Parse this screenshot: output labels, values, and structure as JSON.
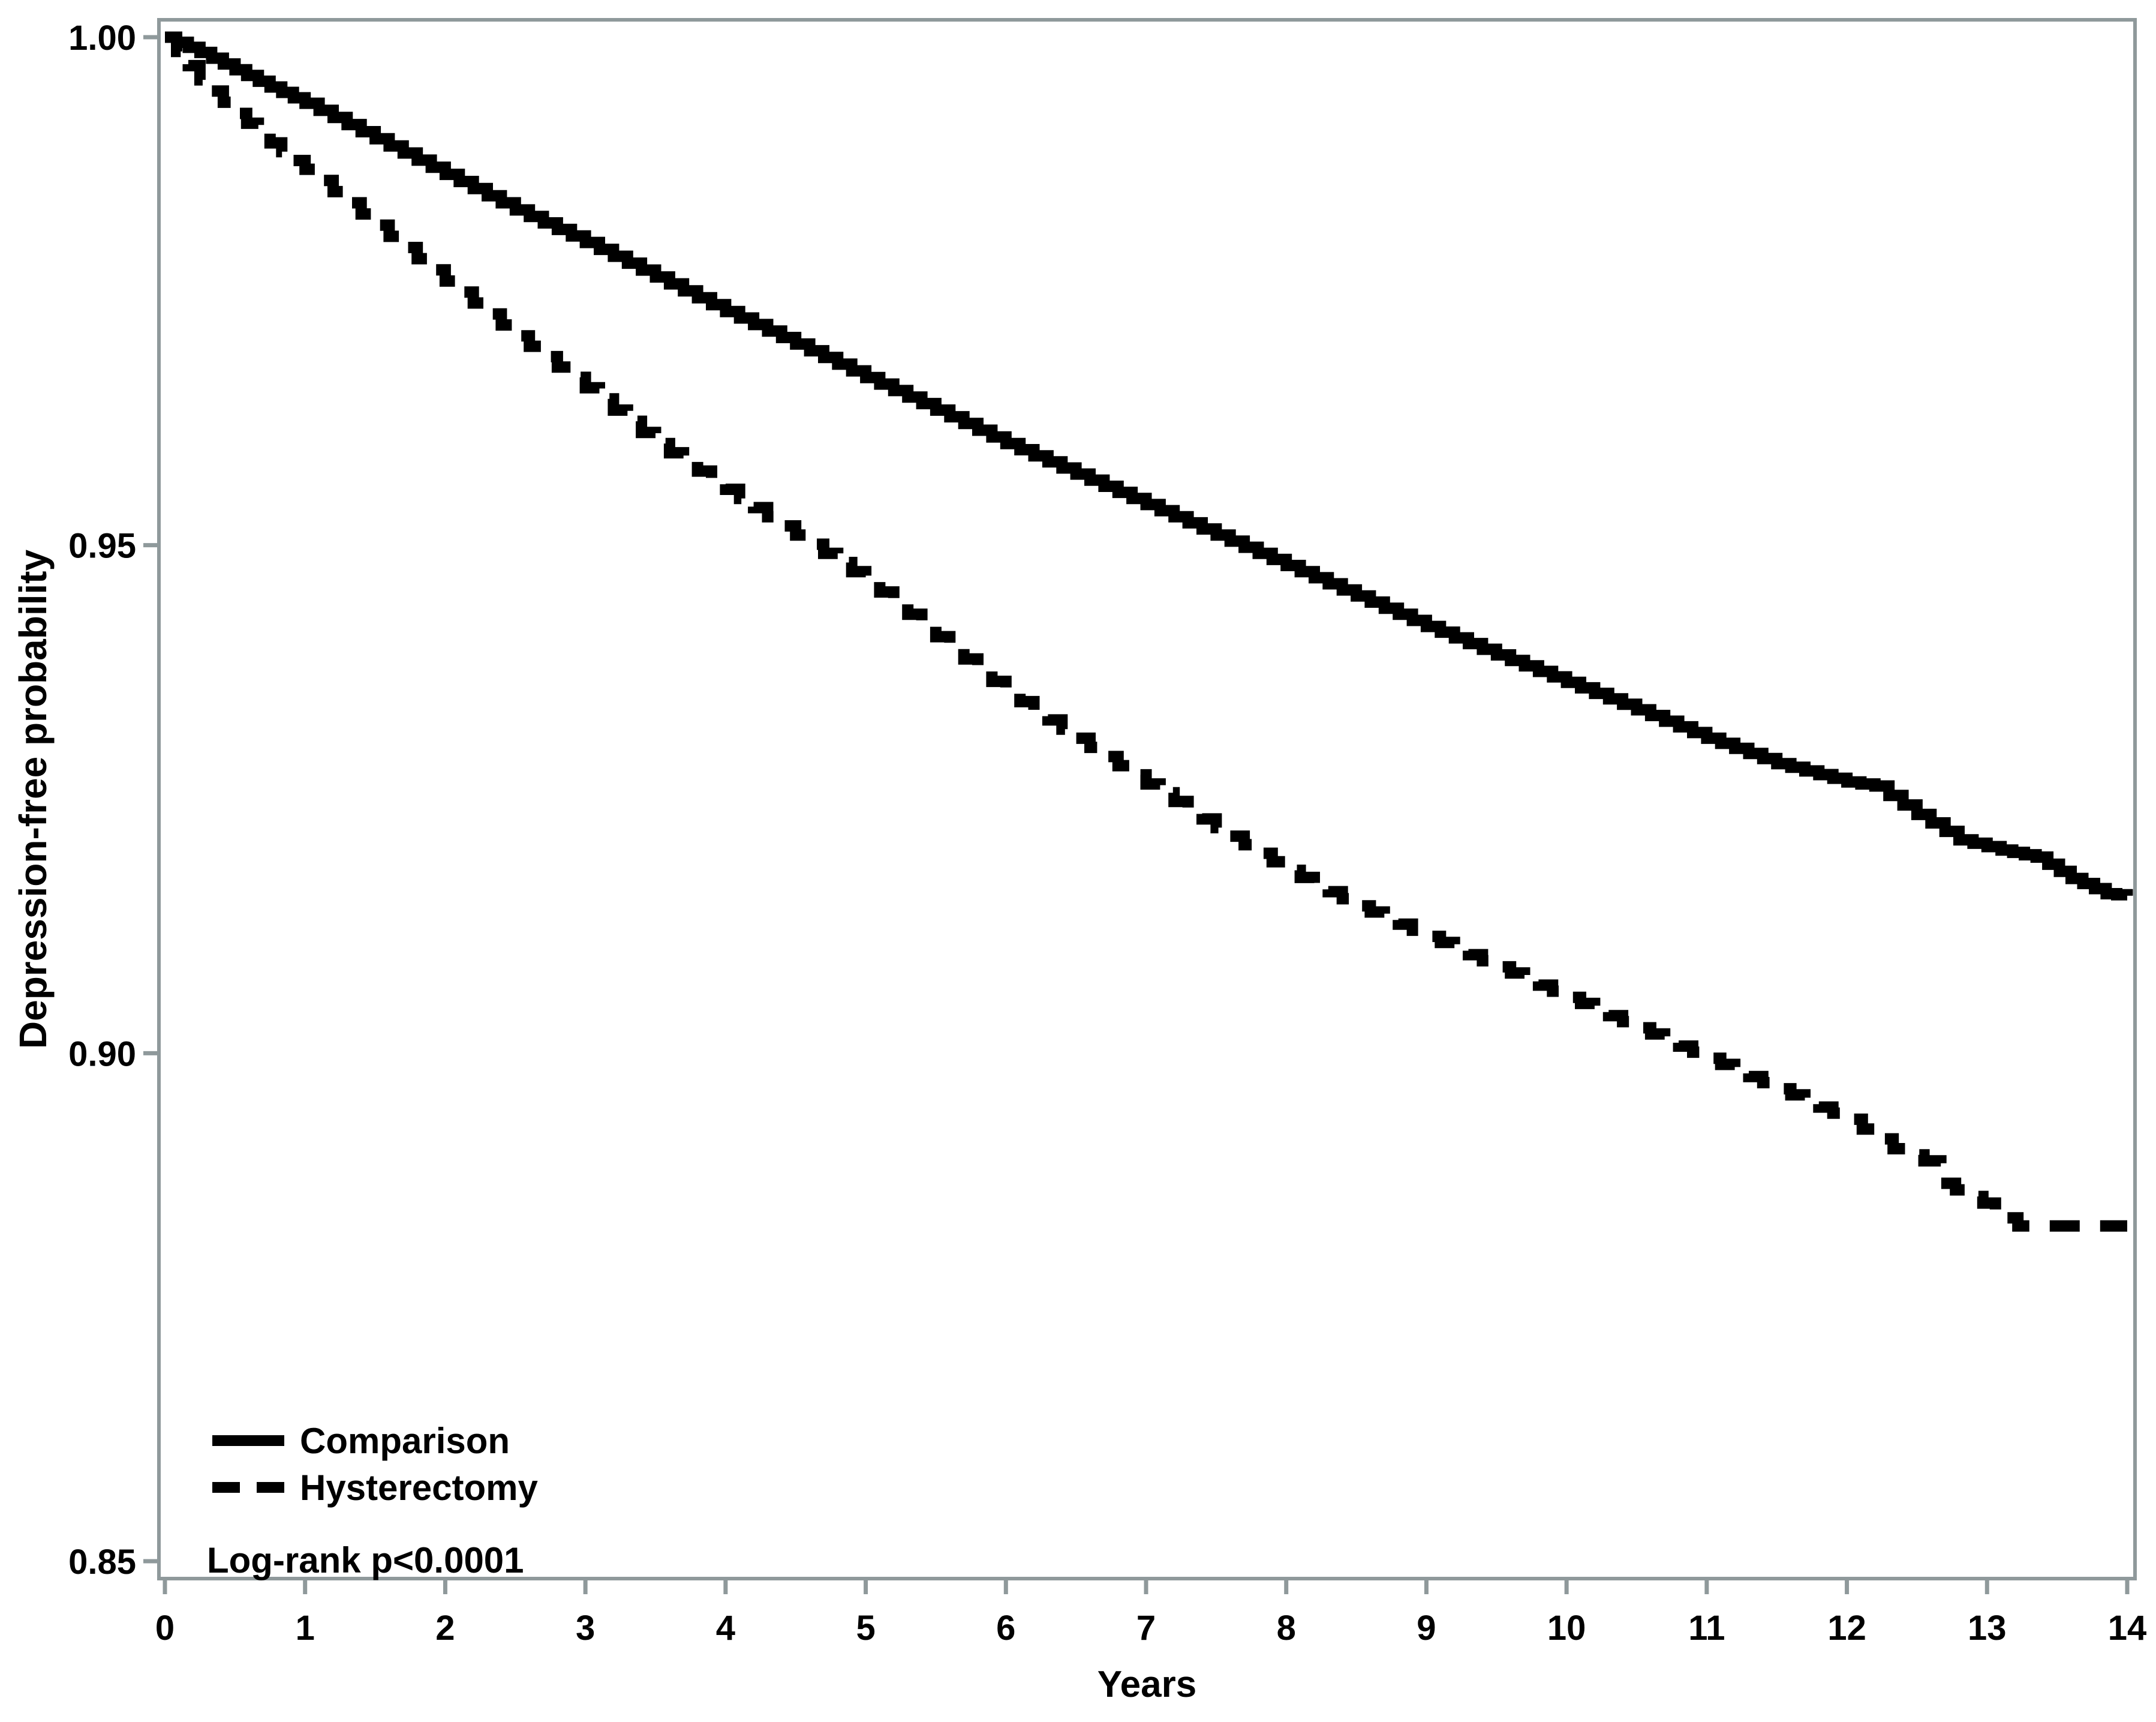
{
  "figure": {
    "y_axis_title": "Depression-free probability",
    "x_axis_title": "Years",
    "annotation": "Log-rank p<0.0001",
    "legend": [
      {
        "label": "Comparison",
        "style": "solid"
      },
      {
        "label": "Hysterectomy",
        "style": "dashed"
      }
    ]
  },
  "chart_data": {
    "type": "line",
    "subtype": "kaplan-meier-survival",
    "title": "",
    "xlabel": "Years",
    "ylabel": "Depression-free probability",
    "xlim": [
      0,
      14
    ],
    "ylim": [
      0.85,
      1.0
    ],
    "grid": false,
    "legend_position": "inside-bottom-left",
    "annotation": "Log-rank p<0.0001",
    "colors": {
      "curves": "#000000",
      "axis": "#8f999b",
      "background": "#ffffff"
    },
    "x_ticks": [
      {
        "value": 0,
        "label": "0"
      },
      {
        "value": 1,
        "label": "1"
      },
      {
        "value": 2,
        "label": "2"
      },
      {
        "value": 3,
        "label": "3"
      },
      {
        "value": 4,
        "label": "4"
      },
      {
        "value": 5,
        "label": "5"
      },
      {
        "value": 6,
        "label": "6"
      },
      {
        "value": 7,
        "label": "7"
      },
      {
        "value": 8,
        "label": "8"
      },
      {
        "value": 9,
        "label": "9"
      },
      {
        "value": 10,
        "label": "10"
      },
      {
        "value": 11,
        "label": "11"
      },
      {
        "value": 12,
        "label": "12"
      },
      {
        "value": 13,
        "label": "13"
      },
      {
        "value": 14,
        "label": "14"
      }
    ],
    "y_ticks": [
      {
        "value": 1.0,
        "label": "1.00"
      },
      {
        "value": 0.95,
        "label": "0.95"
      },
      {
        "value": 0.9,
        "label": "0.90"
      },
      {
        "value": 0.85,
        "label": "0.85"
      }
    ],
    "series": [
      {
        "name": "Comparison",
        "line": "solid",
        "points": [
          [
            0,
            1.0
          ],
          [
            0.25,
            0.9985
          ],
          [
            0.5,
            0.9968
          ],
          [
            0.75,
            0.9951
          ],
          [
            1,
            0.9935
          ],
          [
            1.5,
            0.99
          ],
          [
            2,
            0.9865
          ],
          [
            2.5,
            0.983
          ],
          [
            3,
            0.9798
          ],
          [
            3.5,
            0.9764
          ],
          [
            4,
            0.973
          ],
          [
            4.5,
            0.9698
          ],
          [
            5,
            0.9665
          ],
          [
            5.5,
            0.9633
          ],
          [
            6,
            0.96
          ],
          [
            6.5,
            0.957
          ],
          [
            7,
            0.954
          ],
          [
            7.5,
            0.951
          ],
          [
            8,
            0.948
          ],
          [
            8.5,
            0.945
          ],
          [
            9,
            0.942
          ],
          [
            9.5,
            0.9392
          ],
          [
            10,
            0.9365
          ],
          [
            10.5,
            0.9338
          ],
          [
            11,
            0.931
          ],
          [
            11.5,
            0.9285
          ],
          [
            12,
            0.9267
          ],
          [
            12.2,
            0.9263
          ],
          [
            12.5,
            0.9235
          ],
          [
            12.8,
            0.921
          ],
          [
            13.1,
            0.92
          ],
          [
            13.35,
            0.9193
          ],
          [
            13.6,
            0.9172
          ],
          [
            13.85,
            0.9157
          ],
          [
            14,
            0.9155
          ]
        ]
      },
      {
        "name": "Hysterectomy",
        "line": "dashed",
        "points": [
          [
            0,
            1.0
          ],
          [
            0.25,
            0.9958
          ],
          [
            0.5,
            0.9925
          ],
          [
            0.75,
            0.9896
          ],
          [
            1,
            0.987
          ],
          [
            1.5,
            0.9815
          ],
          [
            2,
            0.976
          ],
          [
            2.5,
            0.9706
          ],
          [
            3,
            0.9655
          ],
          [
            3.5,
            0.96
          ],
          [
            4,
            0.9555
          ],
          [
            4.5,
            0.951
          ],
          [
            5,
            0.9465
          ],
          [
            5.5,
            0.941
          ],
          [
            6,
            0.9355
          ],
          [
            6.5,
            0.931
          ],
          [
            7,
            0.9265
          ],
          [
            7.5,
            0.9222
          ],
          [
            8,
            0.918
          ],
          [
            8.5,
            0.9145
          ],
          [
            9,
            0.9115
          ],
          [
            9.5,
            0.9085
          ],
          [
            10,
            0.9055
          ],
          [
            10.5,
            0.9025
          ],
          [
            11,
            0.8995
          ],
          [
            11.5,
            0.8965
          ],
          [
            12,
            0.8935
          ],
          [
            12.33,
            0.8906
          ],
          [
            12.55,
            0.8894
          ],
          [
            12.67,
            0.8872
          ],
          [
            12.88,
            0.8859
          ],
          [
            13.06,
            0.8846
          ],
          [
            13.22,
            0.883
          ],
          [
            13.5,
            0.883
          ],
          [
            14,
            0.883
          ]
        ]
      }
    ]
  }
}
